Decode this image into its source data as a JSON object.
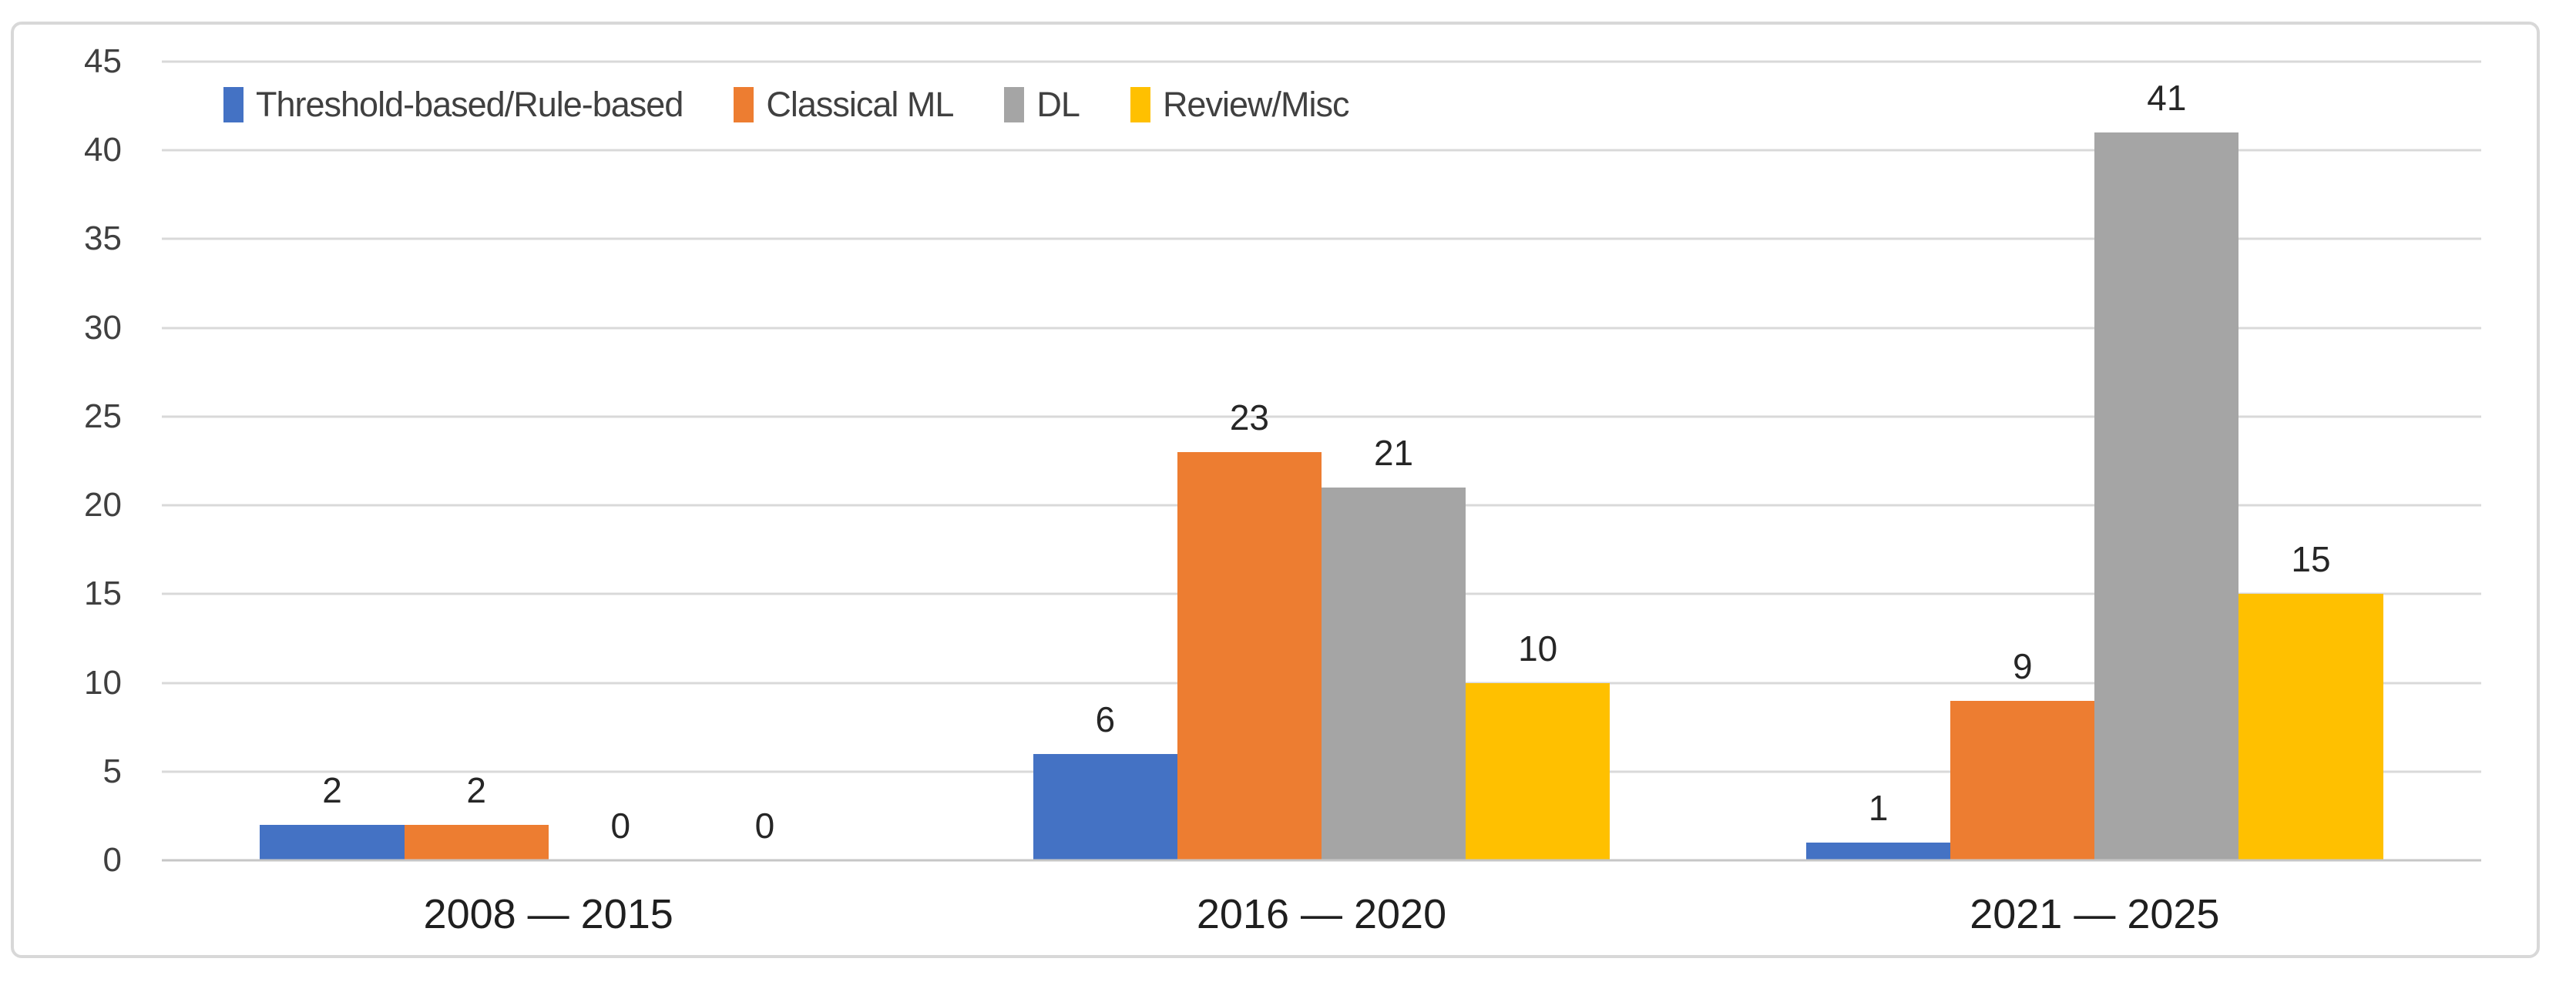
{
  "chart_data": {
    "type": "bar",
    "title": "",
    "xlabel": "",
    "ylabel": "",
    "categories": [
      "2008 — 2015",
      "2016 — 2020",
      "2021 — 2025"
    ],
    "series": [
      {
        "name": "Threshold-based/Rule-based",
        "color": "#4472C4",
        "values": [
          2,
          6,
          1
        ]
      },
      {
        "name": "Classical ML",
        "color": "#ED7D31",
        "values": [
          2,
          23,
          9
        ]
      },
      {
        "name": "DL",
        "color": "#A5A5A5",
        "values": [
          0,
          21,
          41
        ]
      },
      {
        "name": "Review/Misc",
        "color": "#FFC000",
        "values": [
          0,
          10,
          15
        ]
      }
    ],
    "ylim": [
      0,
      45
    ],
    "yticks": [
      0,
      5,
      10,
      15,
      20,
      25,
      30,
      35,
      40,
      45
    ],
    "grid": true,
    "legend_position": "top-left",
    "data_labels": true
  },
  "style_colors": {
    "gridline": "#D9D9D9",
    "axis_line": "#C6C6C6",
    "frame_border": "#D8D8D8",
    "tick_text": "#404040",
    "legend_text": "#404040",
    "data_label_text": "#262626",
    "category_text": "#1F1F1F"
  }
}
